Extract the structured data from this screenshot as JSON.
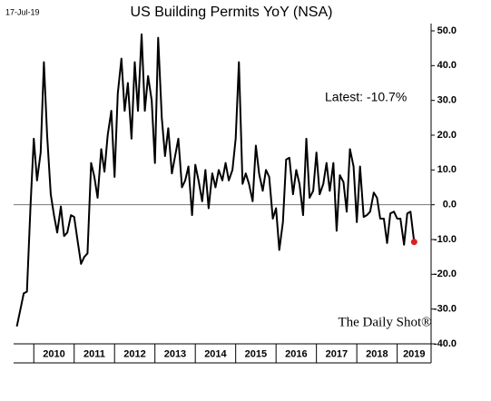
{
  "chart_data": {
    "type": "line",
    "title": "US Building Permits YoY (NSA)",
    "date": "17-Jul-19",
    "annotation": "Latest:  -10.7%",
    "source": "The Daily Shot®",
    "color": "#000000",
    "last_point_color": "#e02020",
    "x": [
      2009.58,
      2009.67,
      2009.75,
      2009.83,
      2009.92,
      2010.0,
      2010.08,
      2010.17,
      2010.25,
      2010.33,
      2010.42,
      2010.5,
      2010.58,
      2010.67,
      2010.75,
      2010.83,
      2010.92,
      2011.0,
      2011.08,
      2011.17,
      2011.25,
      2011.33,
      2011.42,
      2011.5,
      2011.58,
      2011.67,
      2011.75,
      2011.83,
      2011.92,
      2012.0,
      2012.08,
      2012.17,
      2012.25,
      2012.33,
      2012.42,
      2012.5,
      2012.58,
      2012.67,
      2012.75,
      2012.83,
      2012.92,
      2013.0,
      2013.08,
      2013.17,
      2013.25,
      2013.33,
      2013.42,
      2013.5,
      2013.58,
      2013.67,
      2013.75,
      2013.83,
      2013.92,
      2014.0,
      2014.08,
      2014.17,
      2014.25,
      2014.33,
      2014.42,
      2014.5,
      2014.58,
      2014.67,
      2014.75,
      2014.83,
      2014.92,
      2015.0,
      2015.08,
      2015.17,
      2015.25,
      2015.33,
      2015.42,
      2015.5,
      2015.58,
      2015.67,
      2015.75,
      2015.83,
      2015.92,
      2016.0,
      2016.08,
      2016.17,
      2016.25,
      2016.33,
      2016.42,
      2016.5,
      2016.58,
      2016.67,
      2016.75,
      2016.83,
      2016.92,
      2017.0,
      2017.08,
      2017.17,
      2017.25,
      2017.33,
      2017.42,
      2017.5,
      2017.58,
      2017.67,
      2017.75,
      2017.83,
      2017.92,
      2018.0,
      2018.08,
      2018.17,
      2018.25,
      2018.33,
      2018.42,
      2018.5,
      2018.58,
      2018.67,
      2018.75,
      2018.83,
      2018.92,
      2019.0,
      2019.08,
      2019.17,
      2019.25,
      2019.33,
      2019.42
    ],
    "values": [
      -35,
      -30,
      -25.5,
      -25,
      0,
      19,
      7,
      15,
      41,
      20,
      3,
      -3,
      -8,
      -0.5,
      -9,
      -8,
      -3,
      -3.5,
      -10,
      -17,
      -15,
      -14,
      12,
      8,
      2,
      16,
      9.5,
      20,
      27,
      8,
      32,
      42,
      27,
      35,
      19,
      41,
      27,
      49,
      27,
      37,
      30,
      12,
      48,
      25,
      14,
      22,
      9,
      14,
      19,
      5,
      7,
      11,
      -3,
      11.5,
      7,
      1,
      10,
      -1,
      9,
      5,
      10,
      7,
      12,
      7,
      10,
      19,
      41,
      6,
      9,
      6,
      1,
      17,
      9,
      4,
      10,
      8,
      -4,
      -1,
      -13,
      -5,
      13,
      13.5,
      3,
      10,
      6,
      -3,
      19,
      2,
      4,
      15,
      3,
      6,
      12,
      4,
      12,
      -7.5,
      8.5,
      6.5,
      -2,
      16,
      11,
      -5,
      11,
      -3.5,
      -3,
      -2,
      3.5,
      2,
      -4,
      -4,
      -11,
      -2.5,
      -2,
      -4,
      -4,
      -11.5,
      -2.5,
      -2,
      -10.7
    ],
    "xlim": [
      2009.5,
      2019.84
    ],
    "xticks": [
      2010,
      2011,
      2012,
      2013,
      2014,
      2015,
      2016,
      2017,
      2018,
      2019
    ],
    "ylim": [
      -40,
      50
    ],
    "yticks": [
      {
        "value": 50,
        "label": "50.0"
      },
      {
        "value": 40,
        "label": "40.0"
      },
      {
        "value": 30,
        "label": "30.0"
      },
      {
        "value": 20,
        "label": "20.0"
      },
      {
        "value": 10,
        "label": "10.0"
      },
      {
        "value": 0,
        "label": "0.0"
      },
      {
        "value": -10,
        "label": "-10.0"
      },
      {
        "value": -20,
        "label": "-20.0"
      },
      {
        "value": -30,
        "label": "-30.0"
      },
      {
        "value": -40,
        "label": "-40.0"
      }
    ],
    "grid": false
  }
}
